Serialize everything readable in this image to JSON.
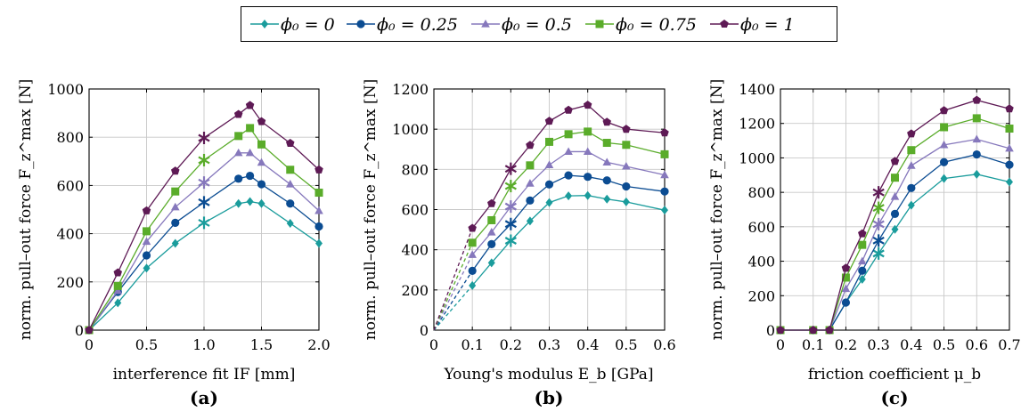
{
  "chart_data": [
    {
      "type": "line",
      "panel_label": "(a)",
      "xlabel": "interference fit IF [mm]",
      "ylabel": "norm. pull–out force F_z^max [N]",
      "xlim": [
        0,
        2.0
      ],
      "ylim": [
        0,
        1000
      ],
      "xticks": [
        "0",
        "0.5",
        "1.0",
        "1.5",
        "2.0"
      ],
      "yticks": [
        "0",
        "200",
        "400",
        "600",
        "800",
        "1000"
      ],
      "grid": true,
      "x": [
        0,
        0.25,
        0.5,
        0.75,
        1.0,
        1.3,
        1.4,
        1.5,
        1.75,
        2.0
      ],
      "star_x": 1.0,
      "series": [
        {
          "name": "φ0 = 0",
          "values": [
            0,
            113,
            257,
            360,
            445,
            525,
            533,
            525,
            443,
            360
          ]
        },
        {
          "name": "φ0 = 0.25",
          "values": [
            0,
            158,
            310,
            445,
            530,
            628,
            640,
            605,
            525,
            430
          ]
        },
        {
          "name": "φ0 = 0.5",
          "values": [
            0,
            163,
            367,
            510,
            612,
            735,
            735,
            695,
            605,
            495
          ]
        },
        {
          "name": "φ0 = 0.75",
          "values": [
            0,
            183,
            410,
            575,
            705,
            805,
            838,
            770,
            665,
            570
          ]
        },
        {
          "name": "φ0 = 1",
          "values": [
            0,
            238,
            495,
            660,
            797,
            895,
            932,
            865,
            775,
            665
          ]
        }
      ]
    },
    {
      "type": "line",
      "panel_label": "(b)",
      "xlabel": "Young's modulus E_b [GPa]",
      "ylabel": "norm. pull–out force F_z^max [N]",
      "xlim": [
        0,
        0.6
      ],
      "ylim": [
        0,
        1200
      ],
      "xticks": [
        "0",
        "0.1",
        "0.2",
        "0.3",
        "0.4",
        "0.5",
        "0.6"
      ],
      "yticks": [
        "0",
        "200",
        "400",
        "600",
        "800",
        "1000",
        "1200"
      ],
      "grid": true,
      "x": [
        0.1,
        0.15,
        0.2,
        0.25,
        0.3,
        0.35,
        0.4,
        0.45,
        0.5,
        0.6
      ],
      "star_x": 0.2,
      "dashed_from_origin": true,
      "series": [
        {
          "name": "φ0 = 0",
          "values": [
            222,
            335,
            445,
            543,
            635,
            668,
            670,
            652,
            638,
            597
          ]
        },
        {
          "name": "φ0 = 0.25",
          "values": [
            295,
            428,
            528,
            645,
            725,
            770,
            763,
            745,
            715,
            690
          ]
        },
        {
          "name": "φ0 = 0.5",
          "values": [
            375,
            487,
            615,
            730,
            822,
            888,
            888,
            835,
            815,
            772
          ]
        },
        {
          "name": "φ0 = 0.75",
          "values": [
            435,
            547,
            717,
            820,
            937,
            975,
            988,
            932,
            922,
            875
          ]
        },
        {
          "name": "φ0 = 1",
          "values": [
            507,
            630,
            803,
            920,
            1040,
            1095,
            1120,
            1035,
            1000,
            982
          ]
        }
      ]
    },
    {
      "type": "line",
      "panel_label": "(c)",
      "xlabel": "friction coefficient μ_b",
      "ylabel": "norm. pull–out force F_z^max [N]",
      "xlim": [
        0,
        0.7
      ],
      "ylim": [
        0,
        1400
      ],
      "xticks": [
        "0",
        "0.1",
        "0.2",
        "0.3",
        "0.4",
        "0.5",
        "0.6",
        "0.7"
      ],
      "yticks": [
        "0",
        "200",
        "400",
        "600",
        "800",
        "1000",
        "1200",
        "1400"
      ],
      "grid": true,
      "x": [
        0,
        0.1,
        0.15,
        0.2,
        0.25,
        0.3,
        0.35,
        0.4,
        0.5,
        0.6,
        0.7
      ],
      "star_x": 0.3,
      "series": [
        {
          "name": "φ0 = 0",
          "values": [
            0,
            0,
            0,
            160,
            295,
            445,
            585,
            725,
            880,
            905,
            860
          ]
        },
        {
          "name": "φ0 = 0.25",
          "values": [
            0,
            0,
            0,
            160,
            345,
            520,
            675,
            825,
            975,
            1020,
            960
          ]
        },
        {
          "name": "φ0 = 0.5",
          "values": [
            0,
            0,
            0,
            240,
            400,
            615,
            775,
            955,
            1075,
            1108,
            1055
          ]
        },
        {
          "name": "φ0 = 0.75",
          "values": [
            0,
            0,
            0,
            305,
            495,
            710,
            885,
            1045,
            1178,
            1230,
            1170
          ]
        },
        {
          "name": "φ0 = 1",
          "values": [
            0,
            0,
            0,
            360,
            560,
            800,
            980,
            1140,
            1275,
            1335,
            1285
          ]
        }
      ]
    }
  ],
  "legend": {
    "entries": [
      "ϕ₀ = 0",
      "ϕ₀ = 0.25",
      "ϕ₀ = 0.5",
      "ϕ₀ = 0.75",
      "ϕ₀ = 1"
    ]
  },
  "colors": [
    "#1a9c9c",
    "#0b4c92",
    "#8678bc",
    "#5aac2a",
    "#5e1a55"
  ],
  "markers": [
    "diamond",
    "circle",
    "triangle",
    "square",
    "pentagon"
  ]
}
